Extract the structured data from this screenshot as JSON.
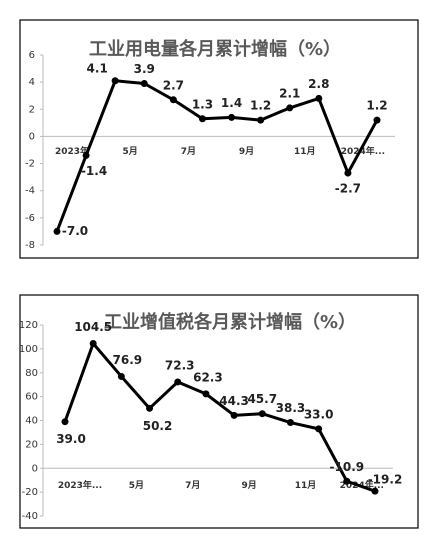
{
  "chart_data": [
    {
      "type": "line",
      "title": "工业用电量各月累计增幅（%）",
      "categories": [
        "2023年",
        null,
        "5月",
        null,
        "7月",
        null,
        "9月",
        null,
        "11月",
        null,
        "2024年...",
        null
      ],
      "series": [
        {
          "color": "#000000",
          "values": [
            -7.0,
            -1.4,
            4.1,
            3.9,
            2.7,
            1.3,
            1.4,
            1.2,
            2.1,
            2.8,
            -2.7,
            1.2
          ],
          "value_labels": [
            "-7.0",
            "-1.4",
            "4.1",
            "3.9",
            "2.7",
            "1.3",
            "1.4",
            "1.2",
            "2.1",
            "2.8",
            "-2.7",
            "1.2"
          ]
        }
      ],
      "ylim": [
        -8,
        6
      ],
      "yticks": [
        -8,
        -6,
        -4,
        -2,
        0,
        2,
        4,
        6
      ]
    },
    {
      "type": "line",
      "title": "工业增值税各月累计增幅（%）",
      "categories": [
        "2023年...",
        null,
        "5月",
        null,
        "7月",
        null,
        "9月",
        null,
        "11月",
        null,
        "2024年...",
        null
      ],
      "series": [
        {
          "color": "#000000",
          "values": [
            39.0,
            104.5,
            76.9,
            50.2,
            72.3,
            62.3,
            44.3,
            45.7,
            38.3,
            33.0,
            -10.9,
            -19.2
          ],
          "value_labels": [
            "39.0",
            "104.5",
            "76.9",
            "50.2",
            "72.3",
            "62.3",
            "44.3",
            "45.7",
            "38.3",
            "33.0",
            "-10.9",
            "-19.2"
          ]
        }
      ],
      "ylim": [
        -40,
        120
      ],
      "yticks": [
        -40,
        -20,
        0,
        20,
        40,
        60,
        80,
        100,
        120
      ]
    }
  ]
}
